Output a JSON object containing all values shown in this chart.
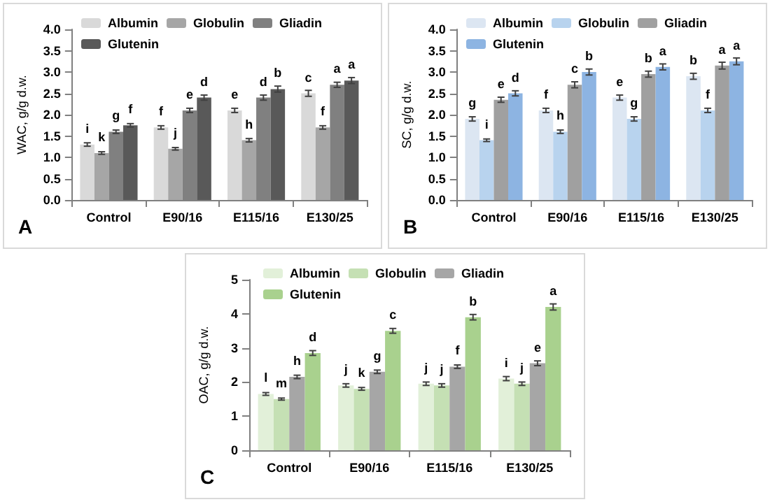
{
  "chart_data": [
    {
      "type": "bar",
      "ylabel": "WAC, g/g d.w.",
      "annotations": [
        "A"
      ],
      "categories": [
        "Control",
        "E90/16",
        "E115/16",
        "E130/25"
      ],
      "ylim": [
        0,
        4
      ],
      "yticks": [
        {
          "value": 0,
          "label": "0.0"
        },
        {
          "value": 0.5,
          "label": "0.5"
        },
        {
          "value": 1,
          "label": "1.0"
        },
        {
          "value": 1.5,
          "label": "1.5"
        },
        {
          "value": 2,
          "label": "2.0"
        },
        {
          "value": 2.5,
          "label": "2.5"
        },
        {
          "value": 3,
          "label": "3.0"
        },
        {
          "value": 3.5,
          "label": "3.5"
        },
        {
          "value": 4,
          "label": "4.0"
        }
      ],
      "grid": false,
      "legend": "top",
      "series": [
        {
          "name": "Albumin",
          "color": "#d9d9d9",
          "values": [
            1.3,
            1.7,
            2.1,
            2.5
          ],
          "errors": [
            0.04,
            0.04,
            0.05,
            0.07
          ],
          "value_labels": [
            "i",
            "f",
            "e",
            "c"
          ]
        },
        {
          "name": "Globulin",
          "color": "#a6a6a6",
          "values": [
            1.1,
            1.2,
            1.4,
            1.7
          ],
          "errors": [
            0.03,
            0.03,
            0.04,
            0.04
          ],
          "value_labels": [
            "k",
            "j",
            "h",
            "f"
          ]
        },
        {
          "name": "Gliadin",
          "color": "#808080",
          "values": [
            1.6,
            2.1,
            2.4,
            2.7
          ],
          "errors": [
            0.04,
            0.05,
            0.06,
            0.06
          ],
          "value_labels": [
            "g",
            "e",
            "d",
            "a"
          ]
        },
        {
          "name": "Glutenin",
          "color": "#595959",
          "values": [
            1.75,
            2.4,
            2.6,
            2.8
          ],
          "errors": [
            0.04,
            0.06,
            0.07,
            0.07
          ],
          "value_labels": [
            "f",
            "d",
            "b",
            "a"
          ]
        }
      ]
    },
    {
      "type": "bar",
      "ylabel": "SC, g/g d.w.",
      "annotations": [
        "B"
      ],
      "categories": [
        "Control",
        "E90/16",
        "E115/16",
        "E130/25"
      ],
      "ylim": [
        0,
        4
      ],
      "yticks": [
        {
          "value": 0,
          "label": "0.0"
        },
        {
          "value": 0.5,
          "label": "0.5"
        },
        {
          "value": 1,
          "label": "1.0"
        },
        {
          "value": 1.5,
          "label": "1.5"
        },
        {
          "value": 2,
          "label": "2.0"
        },
        {
          "value": 2.5,
          "label": "2.5"
        },
        {
          "value": 3,
          "label": "3.0"
        },
        {
          "value": 3.5,
          "label": "3.5"
        },
        {
          "value": 4,
          "label": "4.0"
        }
      ],
      "grid": false,
      "legend": "top",
      "series": [
        {
          "name": "Albumin",
          "color": "#dce6f2",
          "values": [
            1.9,
            2.1,
            2.4,
            2.9
          ],
          "errors": [
            0.05,
            0.05,
            0.06,
            0.07
          ],
          "value_labels": [
            "g",
            "f",
            "e",
            "b"
          ]
        },
        {
          "name": "Globulin",
          "color": "#b8d3ee",
          "values": [
            1.4,
            1.6,
            1.9,
            2.1
          ],
          "errors": [
            0.03,
            0.04,
            0.05,
            0.05
          ],
          "value_labels": [
            "i",
            "h",
            "g",
            "f"
          ]
        },
        {
          "name": "Gliadin",
          "color": "#a0a0a0",
          "values": [
            2.35,
            2.7,
            2.95,
            3.15
          ],
          "errors": [
            0.06,
            0.07,
            0.07,
            0.08
          ],
          "value_labels": [
            "e",
            "c",
            "b",
            "a"
          ]
        },
        {
          "name": "Glutenin",
          "color": "#8db4e2",
          "values": [
            2.5,
            3.0,
            3.12,
            3.25
          ],
          "errors": [
            0.06,
            0.07,
            0.07,
            0.08
          ],
          "value_labels": [
            "d",
            "b",
            "a",
            "a"
          ]
        }
      ]
    },
    {
      "type": "bar",
      "ylabel": "OAC, g/g d.w.",
      "annotations": [
        "C"
      ],
      "categories": [
        "Control",
        "E90/16",
        "E115/16",
        "E130/25"
      ],
      "ylim": [
        0,
        5
      ],
      "yticks": [
        0,
        1,
        2,
        3,
        4,
        5
      ],
      "grid": false,
      "legend": "top",
      "series": [
        {
          "name": "Albumin",
          "color": "#e2f0d9",
          "values": [
            1.65,
            1.9,
            1.95,
            2.1
          ],
          "errors": [
            0.04,
            0.05,
            0.05,
            0.06
          ],
          "value_labels": [
            "l",
            "j",
            "j",
            "i"
          ]
        },
        {
          "name": "Globulin",
          "color": "#c5e0b4",
          "values": [
            1.5,
            1.8,
            1.9,
            1.95
          ],
          "errors": [
            0.03,
            0.04,
            0.05,
            0.05
          ],
          "value_labels": [
            "m",
            "k",
            "j",
            "j"
          ]
        },
        {
          "name": "Gliadin",
          "color": "#a6a6a6",
          "values": [
            2.15,
            2.3,
            2.45,
            2.55
          ],
          "errors": [
            0.05,
            0.05,
            0.05,
            0.07
          ],
          "value_labels": [
            "h",
            "g",
            "f",
            "e"
          ]
        },
        {
          "name": "Glutenin",
          "color": "#a9d18e",
          "values": [
            2.85,
            3.5,
            3.9,
            4.2
          ],
          "errors": [
            0.07,
            0.07,
            0.08,
            0.09
          ],
          "value_labels": [
            "d",
            "c",
            "b",
            "a"
          ]
        }
      ]
    }
  ]
}
